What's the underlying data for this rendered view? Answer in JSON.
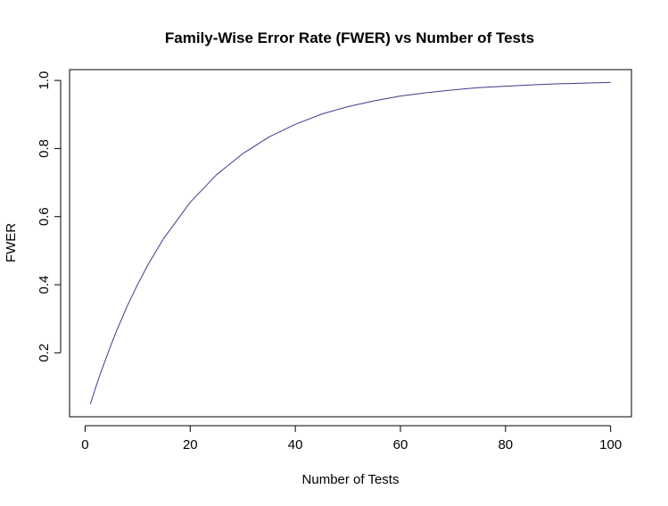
{
  "chart_data": {
    "type": "line",
    "title": "Family-Wise Error Rate (FWER) vs Number of Tests",
    "xlabel": "Number of Tests",
    "ylabel": "FWER",
    "xlim": [
      1,
      100
    ],
    "ylim": [
      0.05,
      0.994
    ],
    "x_ticks": [
      0,
      20,
      40,
      60,
      80,
      100
    ],
    "x_tick_labels": [
      "0",
      "20",
      "40",
      "60",
      "80",
      "100"
    ],
    "y_ticks": [
      0.2,
      0.4,
      0.6,
      0.8,
      1.0
    ],
    "y_tick_labels": [
      "0.2",
      "0.4",
      "0.6",
      "0.8",
      "1.0"
    ],
    "grid": false,
    "line_color": "#3b3b8f",
    "series": [
      {
        "x": [
          1,
          2,
          3,
          4,
          5,
          6,
          8,
          10,
          12,
          15,
          20,
          25,
          30,
          35,
          40,
          45,
          50,
          55,
          60,
          65,
          70,
          75,
          80,
          85,
          90,
          95,
          100
        ],
        "values": [
          0.05,
          0.098,
          0.143,
          0.185,
          0.226,
          0.265,
          0.337,
          0.401,
          0.46,
          0.537,
          0.642,
          0.723,
          0.785,
          0.834,
          0.871,
          0.901,
          0.923,
          0.94,
          0.954,
          0.964,
          0.972,
          0.979,
          0.983,
          0.987,
          0.99,
          0.992,
          0.994
        ]
      }
    ]
  }
}
